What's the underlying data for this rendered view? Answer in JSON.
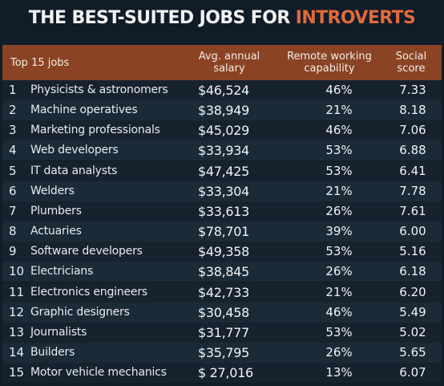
{
  "title": {
    "main": "THE BEST-SUITED JOBS FOR",
    "accent": "INTROVERTS",
    "accent_color": "#e06a3d"
  },
  "header": {
    "jobs": "Top 15 jobs",
    "salary_line1": "Avg. annual",
    "salary_line2": "salary",
    "remote_line1": "Remote working",
    "remote_line2": "capability",
    "social_line1": "Social",
    "social_line2": "score",
    "band_color": "#8a4424"
  },
  "chart_data": {
    "type": "table",
    "title": "THE BEST-SUITED JOBS FOR INTROVERTS",
    "columns": [
      "Top 15 jobs",
      "Avg. annual salary",
      "Remote working capability",
      "Social score"
    ],
    "rows": [
      {
        "rank": "1",
        "job": "Physicists & astronomers",
        "salary": "$46,524",
        "remote": "46%",
        "social": "7.33"
      },
      {
        "rank": "2",
        "job": "Machine operatives",
        "salary": "$38,949",
        "remote": "21%",
        "social": "8.18"
      },
      {
        "rank": "3",
        "job": "Marketing professionals",
        "salary": "$45,029",
        "remote": "46%",
        "social": "7.06"
      },
      {
        "rank": "4",
        "job": "Web developers",
        "salary": "$33,934",
        "remote": "53%",
        "social": "6.88"
      },
      {
        "rank": "5",
        "job": "IT data analysts",
        "salary": "$47,425",
        "remote": "53%",
        "social": "6.41"
      },
      {
        "rank": "6",
        "job": "Welders",
        "salary": "$33,304",
        "remote": "21%",
        "social": "7.78"
      },
      {
        "rank": "7",
        "job": "Plumbers",
        "salary": "$33,613",
        "remote": "26%",
        "social": "7.61"
      },
      {
        "rank": "8",
        "job": "Actuaries",
        "salary": "$78,701",
        "remote": "39%",
        "social": "6.00"
      },
      {
        "rank": "9",
        "job": "Software developers",
        "salary": "$49,358",
        "remote": "53%",
        "social": "5.16"
      },
      {
        "rank": "10",
        "job": "Electricians",
        "salary": "$38,845",
        "remote": "26%",
        "social": "6.18"
      },
      {
        "rank": "11",
        "job": "Electronics engineers",
        "salary": "$42,733",
        "remote": "21%",
        "social": "6.20"
      },
      {
        "rank": "12",
        "job": "Graphic designers",
        "salary": "$30,458",
        "remote": "46%",
        "social": "5.49"
      },
      {
        "rank": "13",
        "job": "Journalists",
        "salary": "$31,777",
        "remote": "53%",
        "social": "5.02"
      },
      {
        "rank": "14",
        "job": "Builders",
        "salary": "$35,795",
        "remote": "26%",
        "social": "5.65"
      },
      {
        "rank": "15",
        "job": "Motor vehicle mechanics",
        "salary": "$ 27,016",
        "remote": "13%",
        "social": "6.07"
      }
    ]
  }
}
